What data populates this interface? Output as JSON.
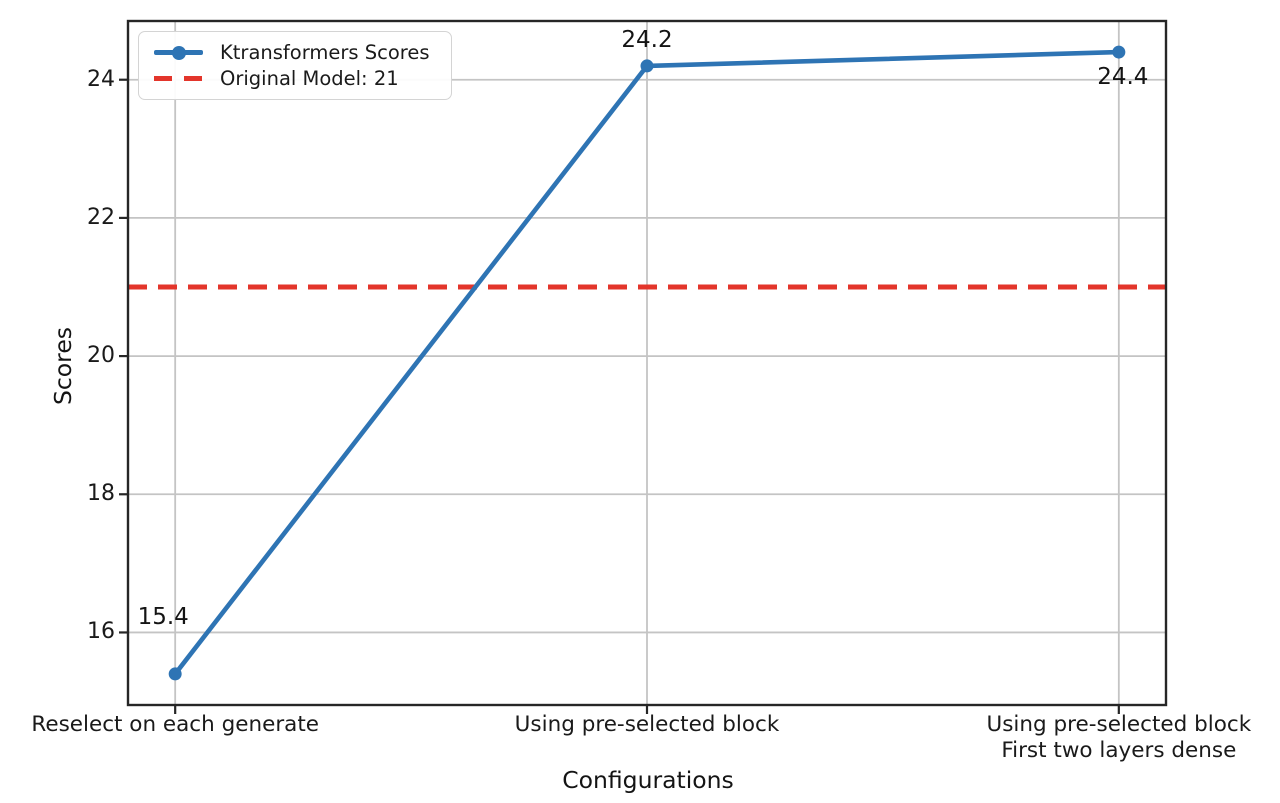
{
  "chart_data": {
    "type": "line",
    "xlabel": "Configurations",
    "ylabel": "Scores",
    "categories": [
      "Reselect on each generate",
      "Using pre-selected block",
      "Using pre-selected block\nFirst two layers dense"
    ],
    "series": [
      {
        "name": "Ktransformers Scores",
        "values": [
          15.4,
          24.2,
          24.4
        ],
        "color": "#2e74b4",
        "marker": "circle",
        "style": "solid"
      }
    ],
    "reference_line": {
      "label": "Original Model: 21",
      "value": 21,
      "color": "#e3352b",
      "style": "dashed"
    },
    "point_labels": [
      {
        "text": "15.4",
        "point": 0,
        "placement": "above-left"
      },
      {
        "text": "24.2",
        "point": 1,
        "placement": "above"
      },
      {
        "text": "24.4",
        "point": 2,
        "placement": "below"
      }
    ],
    "yticks": [
      16,
      18,
      20,
      22,
      24
    ],
    "ylim": [
      14.95,
      24.85
    ],
    "xlim": [
      -0.1,
      2.1
    ],
    "grid": true,
    "legend_position": "upper-left",
    "grid_color": "#c4c4c4",
    "spine_color": "#262626"
  }
}
